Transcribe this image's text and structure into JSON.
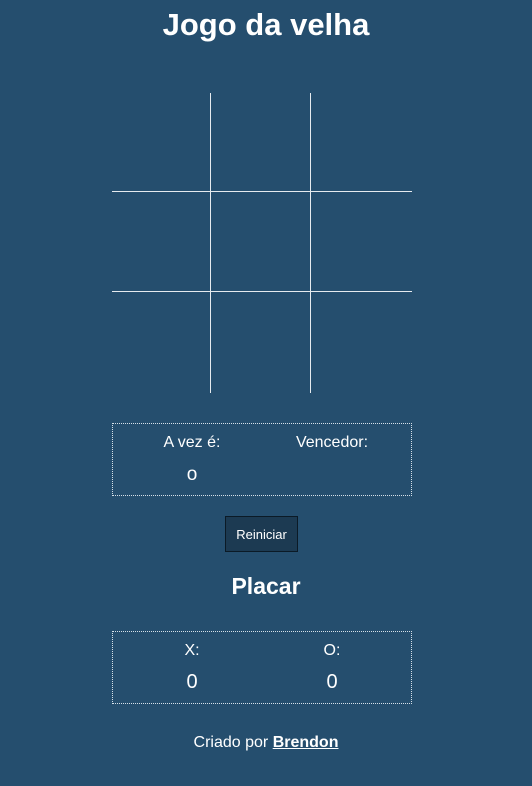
{
  "title": "Jogo da velha",
  "board": {
    "cells": [
      "",
      "",
      "",
      "",
      "",
      "",
      "",
      "",
      ""
    ]
  },
  "status": {
    "turn_label": "A vez é:",
    "turn_value": "o",
    "winner_label": "Vencedor:",
    "winner_value": ""
  },
  "restart_label": "Reiniciar",
  "score": {
    "title": "Placar",
    "x_label": "X:",
    "x_value": "0",
    "o_label": "O:",
    "o_value": "0"
  },
  "footer": {
    "text": "Criado por",
    "author": "Brendon"
  },
  "colors": {
    "background": "#254e6e",
    "text": "#ffffff",
    "grid_line": "#e6ebef"
  }
}
